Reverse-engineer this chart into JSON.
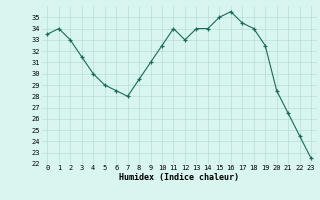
{
  "x": [
    0,
    1,
    2,
    3,
    4,
    5,
    6,
    7,
    8,
    9,
    10,
    11,
    12,
    13,
    14,
    15,
    16,
    17,
    18,
    19,
    20,
    21,
    22,
    23
  ],
  "y": [
    33.5,
    34.0,
    33.0,
    31.5,
    30.0,
    29.0,
    28.5,
    28.0,
    29.5,
    31.0,
    32.5,
    34.0,
    33.0,
    34.0,
    34.0,
    35.0,
    35.5,
    34.5,
    34.0,
    32.5,
    28.5,
    26.5,
    24.5,
    22.5
  ],
  "xlabel": "Humidex (Indice chaleur)",
  "ylim": [
    22,
    36
  ],
  "xlim": [
    -0.5,
    23.5
  ],
  "yticks": [
    22,
    23,
    24,
    25,
    26,
    27,
    28,
    29,
    30,
    31,
    32,
    33,
    34,
    35
  ],
  "xticks": [
    0,
    1,
    2,
    3,
    4,
    5,
    6,
    7,
    8,
    9,
    10,
    11,
    12,
    13,
    14,
    15,
    16,
    17,
    18,
    19,
    20,
    21,
    22,
    23
  ],
  "line_color": "#1a6b5a",
  "marker": "+",
  "bg_color": "#d8f5f0",
  "grid_color": "#b8ddd8",
  "grid_minor_color": "#cceae5"
}
